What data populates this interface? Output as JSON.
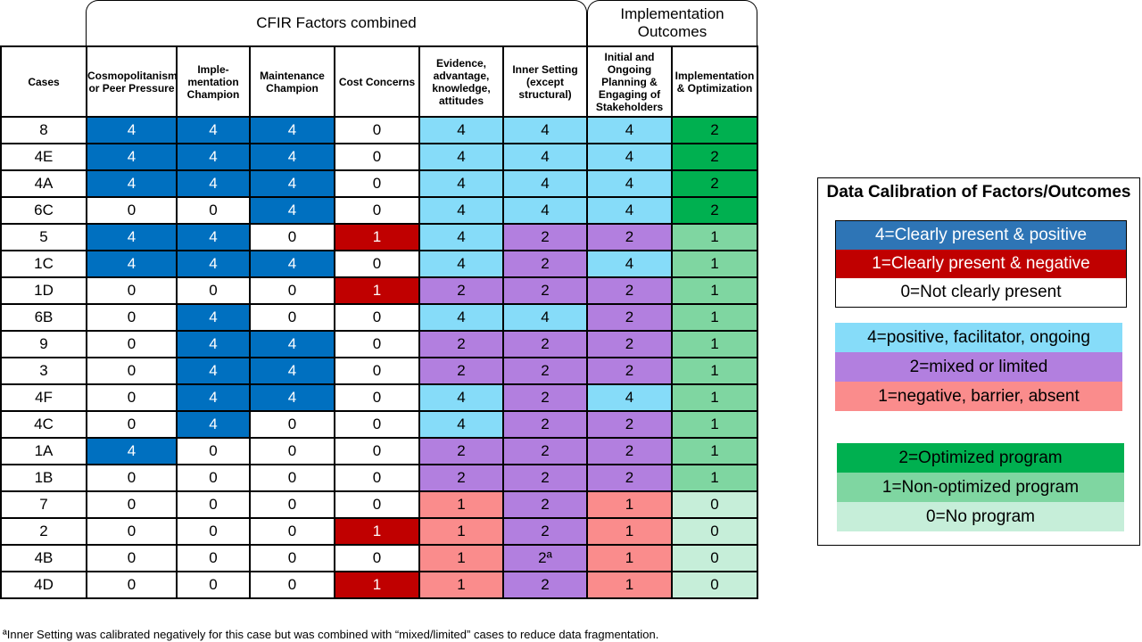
{
  "group_headers": {
    "cfir": "CFIR Factors combined",
    "outcomes": "Implementation Outcomes"
  },
  "columns": [
    "Cases",
    "Cosmopolitanism or Peer Pressure",
    "Imple-mentation Champion",
    "Maintenance Champion",
    "Cost Concerns",
    "Evidence, advantage, knowledge, attitudes",
    "Inner Setting (except structural)",
    "Initial and Ongoing Planning & Engaging of Stakeholders",
    "Implementation & Optimization"
  ],
  "column_kinds": [
    "case",
    "f",
    "f",
    "f",
    "f",
    "x",
    "x",
    "x",
    "o"
  ],
  "rows": [
    [
      "8",
      "4",
      "4",
      "4",
      "0",
      "4",
      "4",
      "4",
      "2"
    ],
    [
      "4E",
      "4",
      "4",
      "4",
      "0",
      "4",
      "4",
      "4",
      "2"
    ],
    [
      "4A",
      "4",
      "4",
      "4",
      "0",
      "4",
      "4",
      "4",
      "2"
    ],
    [
      "6C",
      "0",
      "0",
      "4",
      "0",
      "4",
      "4",
      "4",
      "2"
    ],
    [
      "5",
      "4",
      "4",
      "0",
      "1",
      "4",
      "2",
      "2",
      "1"
    ],
    [
      "1C",
      "4",
      "4",
      "4",
      "0",
      "4",
      "2",
      "4",
      "1"
    ],
    [
      "1D",
      "0",
      "0",
      "0",
      "1",
      "2",
      "2",
      "2",
      "1"
    ],
    [
      "6B",
      "0",
      "4",
      "0",
      "0",
      "4",
      "4",
      "2",
      "1"
    ],
    [
      "9",
      "0",
      "4",
      "4",
      "0",
      "2",
      "2",
      "2",
      "1"
    ],
    [
      "3",
      "0",
      "4",
      "4",
      "0",
      "2",
      "2",
      "2",
      "1"
    ],
    [
      "4F",
      "0",
      "4",
      "4",
      "0",
      "4",
      "2",
      "4",
      "1"
    ],
    [
      "4C",
      "0",
      "4",
      "0",
      "0",
      "4",
      "2",
      "2",
      "1"
    ],
    [
      "1A",
      "4",
      "0",
      "0",
      "0",
      "2",
      "2",
      "2",
      "1"
    ],
    [
      "1B",
      "0",
      "0",
      "0",
      "0",
      "2",
      "2",
      "2",
      "1"
    ],
    [
      "7",
      "0",
      "0",
      "0",
      "0",
      "1",
      "2",
      "1",
      "0"
    ],
    [
      "2",
      "0",
      "0",
      "0",
      "1",
      "1",
      "2",
      "1",
      "0"
    ],
    [
      "4B",
      "0",
      "0",
      "0",
      "0",
      "1",
      "2ª",
      "1",
      "0"
    ],
    [
      "4D",
      "0",
      "0",
      "0",
      "1",
      "1",
      "2",
      "1",
      "0"
    ]
  ],
  "footnote": "ªInner Setting was calibrated negatively for this case but was combined with “mixed/limited” cases to reduce data fragmentation.",
  "legend": {
    "title": "Data Calibration of Factors/Outcomes",
    "factors": [
      "4=Clearly present & positive",
      "1=Clearly present & negative",
      "0=Not clearly present"
    ],
    "combined": [
      "4=positive, facilitator, ongoing",
      "2=mixed or limited",
      "1=negative, barrier, absent"
    ],
    "outcomes": [
      "2=Optimized program",
      "1=Non-optimized program",
      "0=No program"
    ]
  },
  "colors": {
    "factor_4": "#0070c0",
    "factor_1": "#c00000",
    "factor_0": "#ffffff",
    "combined_4": "#86dcf9",
    "combined_2": "#b27fdf",
    "combined_1": "#fa8c8c",
    "outcome_2": "#00b050",
    "outcome_1": "#7fd6a1",
    "outcome_0": "#c6eed9"
  }
}
